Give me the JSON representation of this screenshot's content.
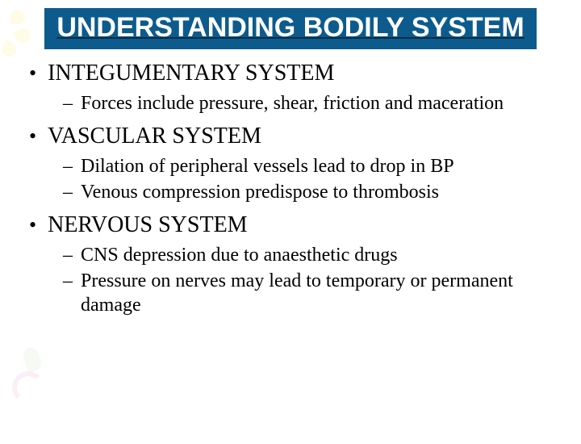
{
  "colors": {
    "title_bg": "#0d5b8c",
    "title_text": "#ffffff",
    "underline": "#072c45",
    "body_text": "#000000",
    "background": "#ffffff",
    "deco_yellow": "#fef4b8",
    "deco_pink": "#e9a3d2",
    "deco_green": "#cde8b8"
  },
  "typography": {
    "title_family": "Arial",
    "title_size_pt": 26,
    "heading_size_pt": 21,
    "body_size_pt": 18,
    "body_family": "Times New Roman"
  },
  "title": "UNDERSTANDING BODILY SYSTEM",
  "sections": [
    {
      "heading": "INTEGUMENTARY SYSTEM",
      "points": [
        "Forces include pressure, shear, friction and maceration"
      ]
    },
    {
      "heading": "VASCULAR SYSTEM",
      "points": [
        "Dilation of peripheral vessels lead to drop in BP",
        "Venous compression predispose to thrombosis"
      ]
    },
    {
      "heading": "NERVOUS SYSTEM",
      "points": [
        "CNS depression due to anaesthetic drugs",
        "Pressure on nerves may lead to temporary or permanent damage"
      ]
    }
  ]
}
